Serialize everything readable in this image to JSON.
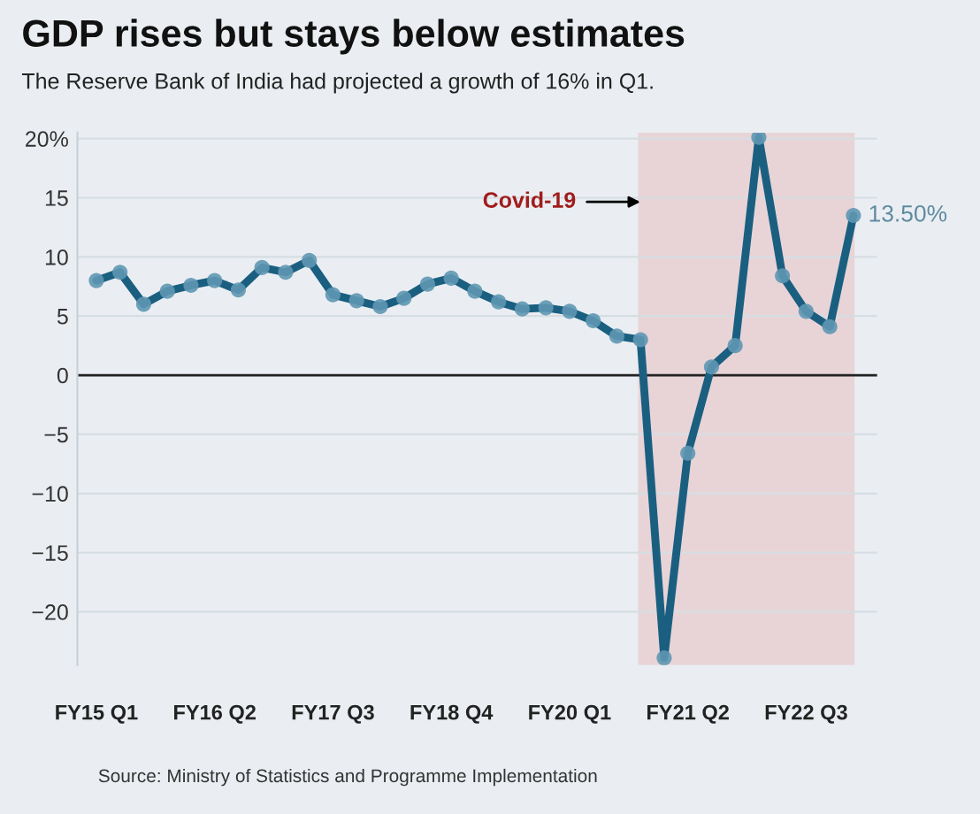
{
  "chart_data": {
    "type": "line",
    "title": "GDP rises but stays below estimates",
    "subtitle": "The Reserve Bank of India had projected a growth of 16% in Q1.",
    "annotations": [
      "Covid-19",
      "Source: Ministry of Statistics and Programme Implementation"
    ],
    "categories": [
      "FY15 Q1",
      null,
      null,
      null,
      null,
      "FY16 Q2",
      null,
      null,
      null,
      null,
      "FY17 Q3",
      null,
      null,
      null,
      null,
      "FY18 Q4",
      null,
      null,
      null,
      null,
      "FY20 Q1",
      null,
      null,
      null,
      null,
      "FY21 Q2",
      null,
      null,
      null,
      null,
      "FY22 Q3",
      null,
      null
    ],
    "series": [
      {
        "color": "#1b5f80",
        "values": [
          8.0,
          8.7,
          6.0,
          7.1,
          7.6,
          8.0,
          7.2,
          9.1,
          8.7,
          9.7,
          6.8,
          6.3,
          5.8,
          6.5,
          7.7,
          8.2,
          7.1,
          6.2,
          5.6,
          5.7,
          5.4,
          4.6,
          3.3,
          3.0,
          -23.9,
          -6.6,
          0.7,
          2.5,
          20.1,
          8.4,
          5.4,
          4.1,
          13.5
        ],
        "value_labels": [
          null,
          null,
          null,
          null,
          null,
          null,
          null,
          null,
          null,
          null,
          null,
          null,
          null,
          null,
          null,
          null,
          null,
          null,
          null,
          null,
          null,
          null,
          null,
          null,
          null,
          null,
          null,
          null,
          null,
          null,
          null,
          null,
          "13.50%"
        ]
      }
    ],
    "ylim": [
      -24.5,
      20.5
    ],
    "yticks": [
      {
        "value": -20,
        "label": "−20"
      },
      {
        "value": -15,
        "label": "−15"
      },
      {
        "value": -10,
        "label": "−10"
      },
      {
        "value": -5,
        "label": "−5"
      },
      0,
      5,
      10,
      15,
      {
        "value": 20,
        "label": "20%"
      }
    ],
    "ref_lines": [
      {
        "axis": "y",
        "value": 0,
        "color": "#222222"
      }
    ],
    "grid": "y",
    "marker": "circle",
    "line_style": "solid"
  }
}
